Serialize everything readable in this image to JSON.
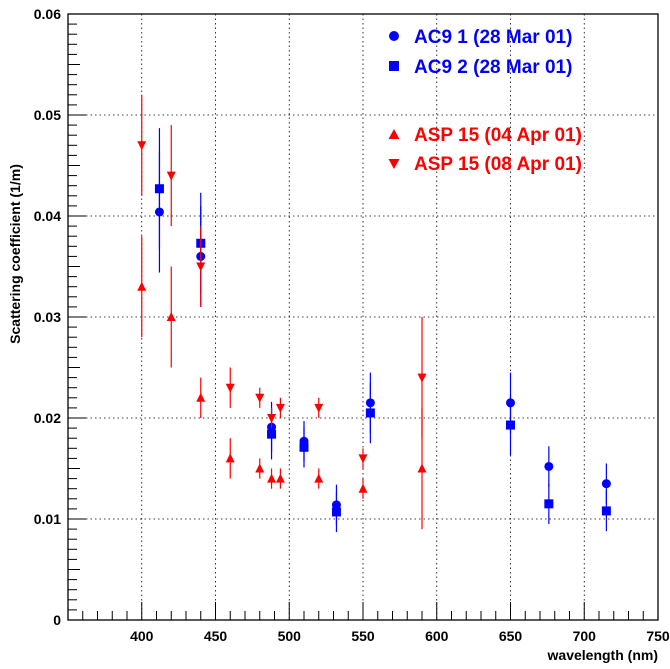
{
  "chart_data": {
    "type": "scatter",
    "title": "",
    "xlabel": "wavelength (nm)",
    "ylabel": "Scattering coefficient (1/m)",
    "xlim": [
      350,
      750
    ],
    "ylim": [
      0,
      0.06
    ],
    "x_ticks": [
      400,
      450,
      500,
      550,
      600,
      650,
      700,
      750
    ],
    "y_ticks": [
      0,
      0.01,
      0.02,
      0.03,
      0.04,
      0.05,
      0.06
    ],
    "x_tick_labels": [
      "400",
      "450",
      "500",
      "550",
      "600",
      "650",
      "700",
      "750"
    ],
    "y_tick_labels": [
      "0",
      "0.01",
      "0.02",
      "0.03",
      "0.04",
      "0.05",
      "0.06"
    ],
    "grid": true,
    "legend_position": "top-right",
    "series": [
      {
        "name": "AC9 1 (28 Mar 01)",
        "color": "#0000ff",
        "marker": "circle",
        "points": [
          {
            "x": 412,
            "y": 0.0404,
            "err": 0.006
          },
          {
            "x": 440,
            "y": 0.036,
            "err": 0.005
          },
          {
            "x": 488,
            "y": 0.0191,
            "err": 0.0025
          },
          {
            "x": 510,
            "y": 0.0177,
            "err": 0.002
          },
          {
            "x": 532,
            "y": 0.0114,
            "err": 0.002
          },
          {
            "x": 555,
            "y": 0.0215,
            "err": 0.003
          },
          {
            "x": 650,
            "y": 0.0215,
            "err": 0.003
          },
          {
            "x": 676,
            "y": 0.0152,
            "err": 0.002
          },
          {
            "x": 715,
            "y": 0.0135,
            "err": 0.002
          }
        ]
      },
      {
        "name": "AC9 2 (28 Mar 01)",
        "color": "#0000ff",
        "marker": "square",
        "points": [
          {
            "x": 412,
            "y": 0.0427,
            "err": 0.006
          },
          {
            "x": 440,
            "y": 0.0373,
            "err": 0.005
          },
          {
            "x": 488,
            "y": 0.0184,
            "err": 0.0025
          },
          {
            "x": 510,
            "y": 0.0171,
            "err": 0.002
          },
          {
            "x": 532,
            "y": 0.0107,
            "err": 0.002
          },
          {
            "x": 555,
            "y": 0.0205,
            "err": 0.003
          },
          {
            "x": 650,
            "y": 0.0193,
            "err": 0.003
          },
          {
            "x": 676,
            "y": 0.0115,
            "err": 0.002
          },
          {
            "x": 715,
            "y": 0.0108,
            "err": 0.002
          }
        ]
      },
      {
        "name": "ASP 15 (04 Apr 01)",
        "color": "#ff0000",
        "marker": "triangle-up",
        "points": [
          {
            "x": 400,
            "y": 0.033,
            "err": 0.005
          },
          {
            "x": 420,
            "y": 0.03,
            "err": 0.005
          },
          {
            "x": 440,
            "y": 0.022,
            "err": 0.002
          },
          {
            "x": 460,
            "y": 0.016,
            "err": 0.002
          },
          {
            "x": 480,
            "y": 0.015,
            "err": 0.001
          },
          {
            "x": 488,
            "y": 0.014,
            "err": 0.001
          },
          {
            "x": 494,
            "y": 0.014,
            "err": 0.001
          },
          {
            "x": 520,
            "y": 0.014,
            "err": 0.001
          },
          {
            "x": 550,
            "y": 0.013,
            "err": 0.001
          },
          {
            "x": 590,
            "y": 0.015,
            "err": 0.006
          }
        ]
      },
      {
        "name": "ASP 15 (08 Apr 01)",
        "color": "#ff0000",
        "marker": "triangle-down",
        "points": [
          {
            "x": 400,
            "y": 0.047,
            "err": 0.005
          },
          {
            "x": 420,
            "y": 0.044,
            "err": 0.005
          },
          {
            "x": 440,
            "y": 0.035,
            "err": 0.004
          },
          {
            "x": 460,
            "y": 0.023,
            "err": 0.002
          },
          {
            "x": 480,
            "y": 0.022,
            "err": 0.001
          },
          {
            "x": 488,
            "y": 0.02,
            "err": 0.001
          },
          {
            "x": 494,
            "y": 0.021,
            "err": 0.001
          },
          {
            "x": 520,
            "y": 0.021,
            "err": 0.001
          },
          {
            "x": 550,
            "y": 0.016,
            "err": 0.001
          },
          {
            "x": 590,
            "y": 0.024,
            "err": 0.006
          }
        ]
      }
    ]
  }
}
